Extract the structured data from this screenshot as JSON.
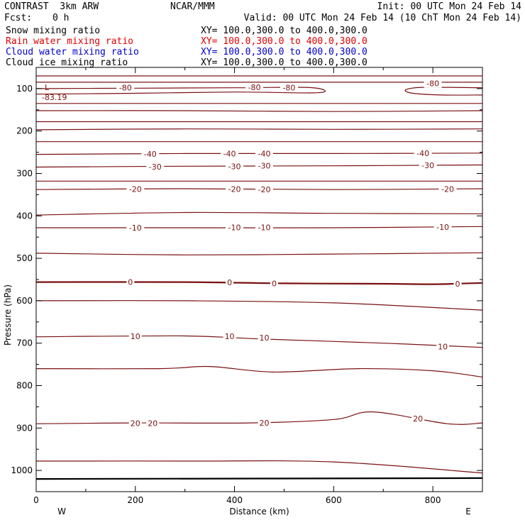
{
  "header": {
    "model": "CONTRAST  3km ARW",
    "center": "NCAR/MMM",
    "init": "Init: 00 UTC Mon 24 Feb 14",
    "fcst_label": "Fcst:",
    "fcst_value": "0 h",
    "valid": "Valid: 00 UTC Mon 24 Feb 14 (10 ChT Mon 24 Feb 14)"
  },
  "fields": [
    {
      "name": "Snow mixing ratio",
      "xy": "XY= 100.0,300.0 to 400.0,300.0",
      "color": "#000000"
    },
    {
      "name": "Rain water mixing ratio",
      "xy": "XY= 100.0,300.0 to 400.0,300.0",
      "color": "#e00000"
    },
    {
      "name": "Cloud water mixing ratio",
      "xy": "XY= 100.0,300.0 to 400.0,300.0",
      "color": "#0000cc"
    },
    {
      "name": "Cloud ice mixing ratio",
      "xy": "XY= 100.0,300.0 to 400.0,300.0",
      "color": "#000000"
    }
  ],
  "chart_data": {
    "type": "line",
    "xlabel": "Distance (km)",
    "ylabel": "Pressure (hPa)",
    "xlim": [
      0,
      900
    ],
    "ylim": [
      1050,
      50
    ],
    "x_ticks": [
      0,
      200,
      400,
      600,
      800
    ],
    "y_ticks": [
      100,
      200,
      300,
      400,
      500,
      600,
      700,
      800,
      900,
      1000
    ],
    "dir_left": "W",
    "dir_right": "E",
    "contour_color": "#7a1010",
    "min_marker": {
      "label": "L",
      "value": "-83.19",
      "x": 20,
      "p": 110
    },
    "contours": [
      {
        "points": [
          [
            0,
            70
          ],
          [
            900,
            70
          ]
        ]
      },
      {
        "points": [
          [
            0,
            85
          ],
          [
            900,
            85
          ]
        ]
      },
      {
        "level": -80,
        "points": [
          [
            0,
            100
          ],
          [
            200,
            99
          ],
          [
            400,
            98
          ],
          [
            540,
            97
          ],
          [
            580,
            103
          ],
          [
            560,
            110
          ],
          [
            400,
            108
          ],
          [
            200,
            111
          ],
          [
            0,
            113
          ]
        ]
      },
      {
        "level": -80,
        "points": [
          [
            900,
            98
          ],
          [
            780,
            97
          ],
          [
            745,
            103
          ],
          [
            760,
            111
          ],
          [
            820,
            115
          ],
          [
            900,
            115
          ]
        ]
      },
      {
        "points": [
          [
            0,
            135
          ],
          [
            900,
            135
          ]
        ]
      },
      {
        "points": [
          [
            0,
            152
          ],
          [
            300,
            152
          ],
          [
            600,
            154
          ],
          [
            900,
            152
          ]
        ]
      },
      {
        "points": [
          [
            0,
            178
          ],
          [
            900,
            178
          ]
        ]
      },
      {
        "points": [
          [
            0,
            197
          ],
          [
            300,
            195
          ],
          [
            600,
            196
          ],
          [
            900,
            195
          ]
        ]
      },
      {
        "points": [
          [
            0,
            225
          ],
          [
            900,
            225
          ]
        ]
      },
      {
        "level": -40,
        "points": [
          [
            0,
            255
          ],
          [
            300,
            253
          ],
          [
            600,
            253
          ],
          [
            900,
            252
          ]
        ]
      },
      {
        "level": -30,
        "points": [
          [
            0,
            285
          ],
          [
            300,
            283
          ],
          [
            600,
            282
          ],
          [
            900,
            280
          ]
        ]
      },
      {
        "points": [
          [
            0,
            318
          ],
          [
            900,
            318
          ]
        ]
      },
      {
        "level": -20,
        "points": [
          [
            0,
            338
          ],
          [
            300,
            336
          ],
          [
            600,
            338
          ],
          [
            900,
            336
          ]
        ]
      },
      {
        "points": [
          [
            0,
            398
          ],
          [
            300,
            392
          ],
          [
            600,
            394
          ],
          [
            900,
            395
          ]
        ]
      },
      {
        "level": -10,
        "points": [
          [
            0,
            428
          ],
          [
            300,
            428
          ],
          [
            600,
            428
          ],
          [
            900,
            425
          ]
        ]
      },
      {
        "points": [
          [
            0,
            488
          ],
          [
            300,
            492
          ],
          [
            600,
            490
          ],
          [
            900,
            487
          ]
        ]
      },
      {
        "level": 0,
        "points": [
          [
            0,
            556
          ],
          [
            300,
            556
          ],
          [
            500,
            559
          ],
          [
            700,
            560
          ],
          [
            800,
            561
          ],
          [
            900,
            558
          ]
        ],
        "bold": true
      },
      {
        "points": [
          [
            0,
            600
          ],
          [
            300,
            600
          ],
          [
            600,
            605
          ],
          [
            900,
            622
          ]
        ]
      },
      {
        "level": 10,
        "points": [
          [
            0,
            685
          ],
          [
            300,
            683
          ],
          [
            450,
            690
          ],
          [
            700,
            700
          ],
          [
            900,
            710
          ]
        ]
      },
      {
        "points": [
          [
            0,
            760
          ],
          [
            250,
            760
          ],
          [
            350,
            755
          ],
          [
            480,
            768
          ],
          [
            650,
            760
          ],
          [
            800,
            765
          ],
          [
            900,
            780
          ]
        ]
      },
      {
        "level": 20,
        "points": [
          [
            0,
            890
          ],
          [
            200,
            888
          ],
          [
            430,
            888
          ],
          [
            600,
            880
          ],
          [
            680,
            862
          ],
          [
            830,
            890
          ],
          [
            900,
            888
          ]
        ]
      },
      {
        "points": [
          [
            0,
            978
          ],
          [
            300,
            978
          ],
          [
            600,
            980
          ],
          [
            900,
            1006
          ]
        ]
      },
      {
        "points": [
          [
            0,
            1020
          ],
          [
            900,
            1018
          ]
        ],
        "bold": true
      }
    ],
    "labels": [
      {
        "text": "-80",
        "x": 180,
        "p": 98
      },
      {
        "text": "-80",
        "x": 440,
        "p": 97
      },
      {
        "text": "-80",
        "x": 510,
        "p": 98
      },
      {
        "text": "-80",
        "x": 800,
        "p": 88
      },
      {
        "text": "-40",
        "x": 230,
        "p": 254
      },
      {
        "text": "-40",
        "x": 390,
        "p": 253
      },
      {
        "text": "-40",
        "x": 460,
        "p": 253
      },
      {
        "text": "-40",
        "x": 780,
        "p": 252
      },
      {
        "text": "-30",
        "x": 240,
        "p": 284
      },
      {
        "text": "-30",
        "x": 400,
        "p": 283
      },
      {
        "text": "-30",
        "x": 460,
        "p": 282
      },
      {
        "text": "-30",
        "x": 790,
        "p": 281
      },
      {
        "text": "-20",
        "x": 200,
        "p": 337
      },
      {
        "text": "-20",
        "x": 400,
        "p": 337
      },
      {
        "text": "-20",
        "x": 460,
        "p": 338
      },
      {
        "text": "-20",
        "x": 830,
        "p": 337
      },
      {
        "text": "-10",
        "x": 200,
        "p": 428
      },
      {
        "text": "-10",
        "x": 400,
        "p": 427
      },
      {
        "text": "-10",
        "x": 460,
        "p": 427
      },
      {
        "text": "-10",
        "x": 820,
        "p": 426
      },
      {
        "text": "0",
        "x": 190,
        "p": 556
      },
      {
        "text": "0",
        "x": 390,
        "p": 557
      },
      {
        "text": "0",
        "x": 480,
        "p": 559
      },
      {
        "text": "0",
        "x": 850,
        "p": 560
      },
      {
        "text": "10",
        "x": 200,
        "p": 684
      },
      {
        "text": "10",
        "x": 390,
        "p": 684
      },
      {
        "text": "10",
        "x": 460,
        "p": 687
      },
      {
        "text": "10",
        "x": 820,
        "p": 708
      },
      {
        "text": "20",
        "x": 200,
        "p": 889
      },
      {
        "text": "20",
        "x": 235,
        "p": 889
      },
      {
        "text": "20",
        "x": 460,
        "p": 888
      },
      {
        "text": "20",
        "x": 770,
        "p": 878
      }
    ]
  }
}
